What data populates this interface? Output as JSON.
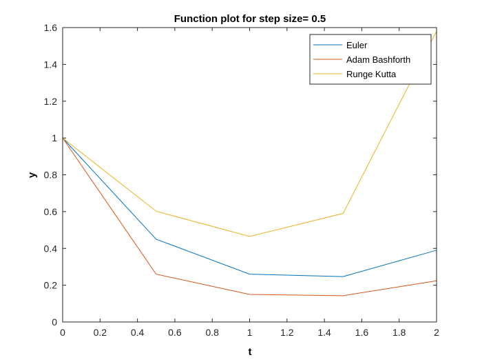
{
  "chart_data": {
    "type": "line",
    "title": "Function plot for step size= 0.5",
    "xlabel": "t",
    "ylabel": "y",
    "xlim": [
      0,
      2
    ],
    "ylim": [
      0,
      1.6
    ],
    "x_ticks": [
      "0",
      "0.2",
      "0.4",
      "0.6",
      "0.8",
      "1",
      "1.2",
      "1.4",
      "1.6",
      "1.8",
      "2"
    ],
    "y_ticks": [
      "0",
      "0.2",
      "0.4",
      "0.6",
      "0.8",
      "1",
      "1.2",
      "1.4",
      "1.6"
    ],
    "grid": false,
    "legend_position": "top-right",
    "x": [
      0,
      0.5,
      1,
      1.5,
      2
    ],
    "series": [
      {
        "name": "Euler",
        "color": "#0072BD",
        "values": [
          1,
          0.45,
          0.26,
          0.247,
          0.39
        ]
      },
      {
        "name": "Adam Bashforth",
        "color": "#D95319",
        "values": [
          1,
          0.26,
          0.15,
          0.143,
          0.224
        ]
      },
      {
        "name": "Runge Kutta",
        "color": "#EDB120",
        "values": [
          1,
          0.602,
          0.465,
          0.59,
          1.58
        ]
      }
    ]
  }
}
